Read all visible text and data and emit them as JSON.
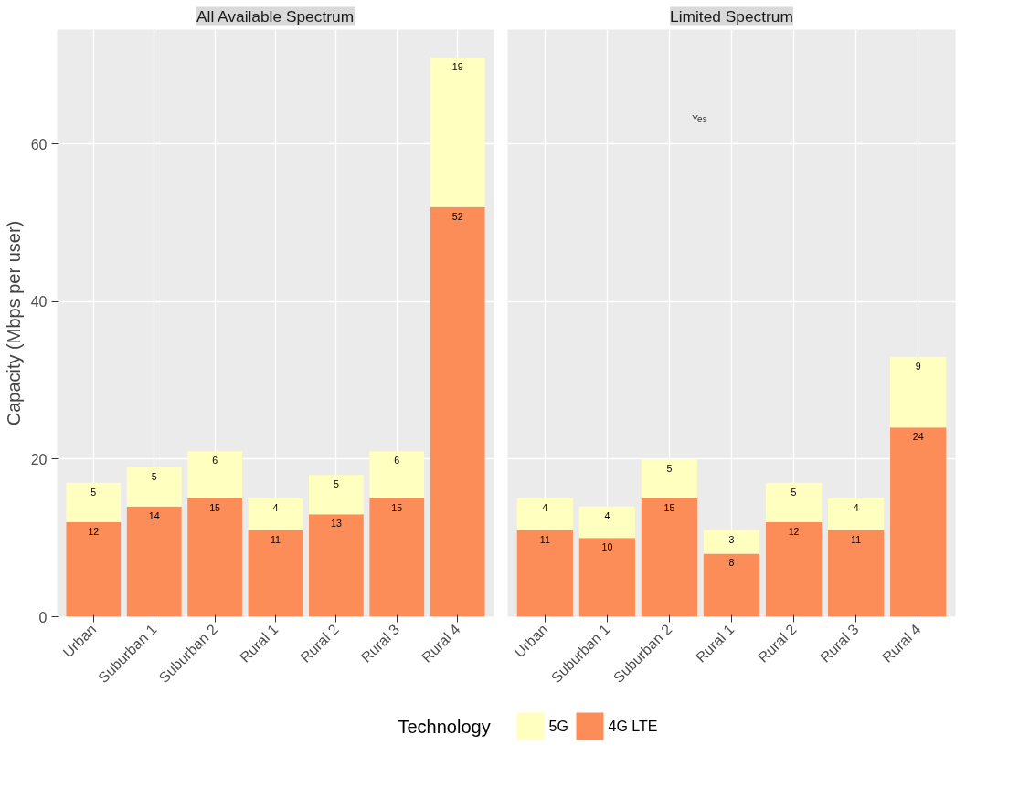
{
  "chart_data": [
    {
      "type": "bar",
      "title": "All Available Spectrum",
      "ylabel": "Capacity (Mbps per user)",
      "categories": [
        "Urban",
        "Suburban 1",
        "Suburban 2",
        "Rural 1",
        "Rural 2",
        "Rural 3",
        "Rural 4"
      ],
      "stacked": true,
      "data_labels": true,
      "ylim": [
        0,
        74.5
      ],
      "yticks": [
        0,
        20,
        40,
        60
      ],
      "grid": true,
      "legend": "bottom",
      "legend_title": "Technology",
      "series": [
        {
          "name": "4G LTE",
          "color": "#fc8d59",
          "values": [
            12,
            14,
            15,
            11,
            13,
            15,
            52
          ]
        },
        {
          "name": "5G",
          "color": "#ffffbf",
          "values": [
            5,
            5,
            6,
            4,
            5,
            6,
            19
          ]
        }
      ]
    },
    {
      "type": "bar",
      "title": "Limited Spectrum",
      "categories": [
        "Urban",
        "Suburban 1",
        "Suburban 2",
        "Rural 1",
        "Rural 2",
        "Rural 3",
        "Rural 4"
      ],
      "stacked": true,
      "data_labels": true,
      "ylim": [
        0,
        74.5
      ],
      "yticks": [
        0,
        20,
        40,
        60
      ],
      "grid": true,
      "tick_labels": "x",
      "annotations": [
        "Yes"
      ],
      "series": [
        {
          "color": "#fc8d59",
          "values": [
            11,
            10,
            15,
            8,
            12,
            11,
            24
          ]
        },
        {
          "color": "#ffffbf",
          "values": [
            4,
            4,
            5,
            3,
            5,
            4,
            9
          ]
        }
      ]
    }
  ]
}
